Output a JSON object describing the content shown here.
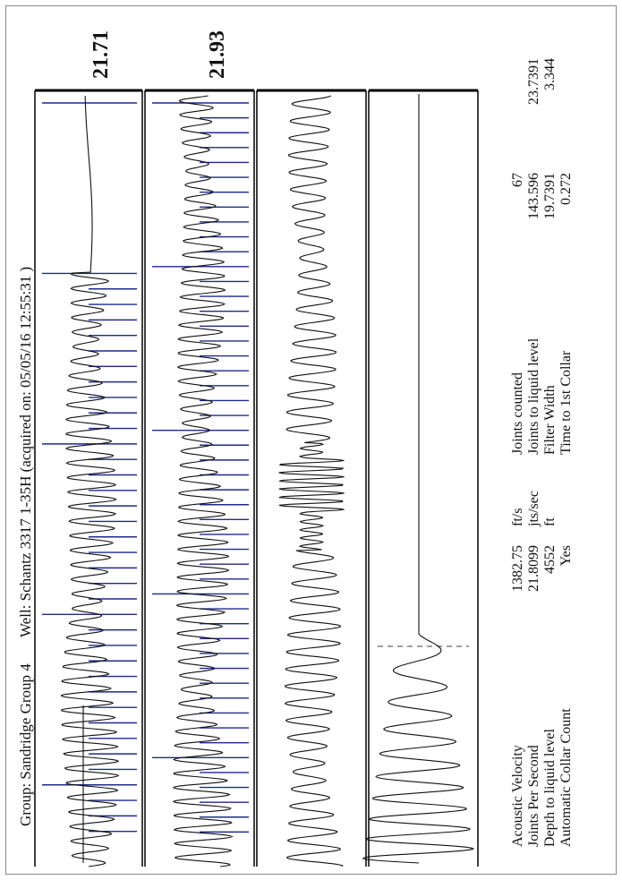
{
  "header": {
    "group": "Group: Sandridge Group 4",
    "well": "Well: Schantz 3317 1-35H (acquired on: 05/05/16 12:55:31 )"
  },
  "readings": {
    "first": "21.71",
    "second": "21.93"
  },
  "stats_left": [
    {
      "label": "Acoustic Velocity",
      "value": "1382.75",
      "unit": "ft/s"
    },
    {
      "label": "Joints Per Second",
      "value": "21.8099",
      "unit": "jts/sec"
    },
    {
      "label": "Depth to liquid level",
      "value": "4552",
      "unit": "ft"
    },
    {
      "label": "Automatic Collar Count",
      "value": "Yes",
      "unit": ""
    }
  ],
  "stats_right": [
    {
      "label": "Joints counted",
      "value": "67",
      "extra": ""
    },
    {
      "label": "Joints to liquid level",
      "value": "143.596",
      "extra": "23.7391"
    },
    {
      "label": "Filter Width",
      "value": "19.7391",
      "extra": "3.344"
    },
    {
      "label": "Time to 1st Collar",
      "value": "0.272",
      "extra": ""
    }
  ],
  "colors": {
    "trace": "#111111",
    "collar_marker": "#1f2a8a",
    "liquid_marker": "#666666"
  },
  "chart_data": {
    "type": "line",
    "orientation": "rotated-90-ccw",
    "panels": [
      {
        "name": "",
        "kind": "collar-trace",
        "signal_onset": 0.23,
        "cycles": 53,
        "marker_count": 48
      },
      {
        "name": "",
        "kind": "collar-trace",
        "signal_onset": 0.0,
        "cycles": 55,
        "marker_count": 50
      },
      {
        "name": "",
        "kind": "filtered-trace",
        "signal_onset": 0.0,
        "cycles": 45,
        "marker_count": 0
      },
      {
        "name": "",
        "kind": "liquid-level-kick",
        "signal_onset": 0.0,
        "cycles": 9,
        "marker_count": 0
      }
    ]
  }
}
